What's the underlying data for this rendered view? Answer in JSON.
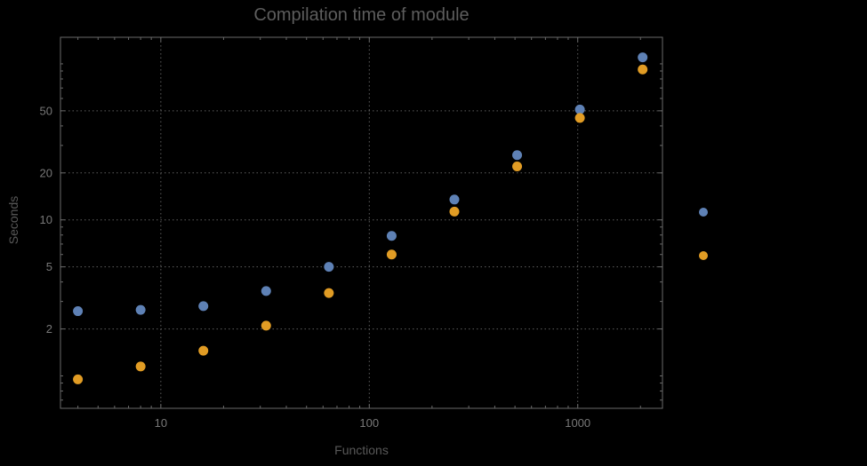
{
  "chart_data": {
    "type": "scatter",
    "title": "Compilation time of module",
    "xlabel": "Functions",
    "ylabel": "Seconds",
    "x_scale": "log",
    "y_scale": "log",
    "grid": "dotted",
    "x": [
      4,
      8,
      16,
      32,
      64,
      128,
      256,
      512,
      1024,
      2048
    ],
    "series": [
      {
        "color": "#5e81b5",
        "values": [
          2.6,
          2.65,
          2.8,
          3.5,
          5.0,
          7.9,
          13.5,
          26,
          51,
          110
        ]
      },
      {
        "color": "#e19c24",
        "values": [
          0.95,
          1.15,
          1.45,
          2.1,
          3.4,
          6.0,
          11.3,
          22,
          45,
          92
        ]
      }
    ],
    "x_ticks": [
      10,
      100,
      1000
    ],
    "y_ticks": [
      2,
      5,
      10,
      20,
      50
    ],
    "xlim": [
      3.3,
      2550
    ],
    "ylim": [
      0.62,
      148
    ],
    "legend_position": "right",
    "legend": {
      "markers": [
        {
          "color": "#5e81b5"
        },
        {
          "color": "#e19c24"
        }
      ]
    },
    "style": {
      "background": "#000000",
      "frame_color": "#6a6a6a",
      "grid_color": "#5e5e5e",
      "tick_label_color": "#787878",
      "text_color": "#5d5d5d",
      "point_radius": 5.5,
      "legend_point_radius": 5
    }
  }
}
